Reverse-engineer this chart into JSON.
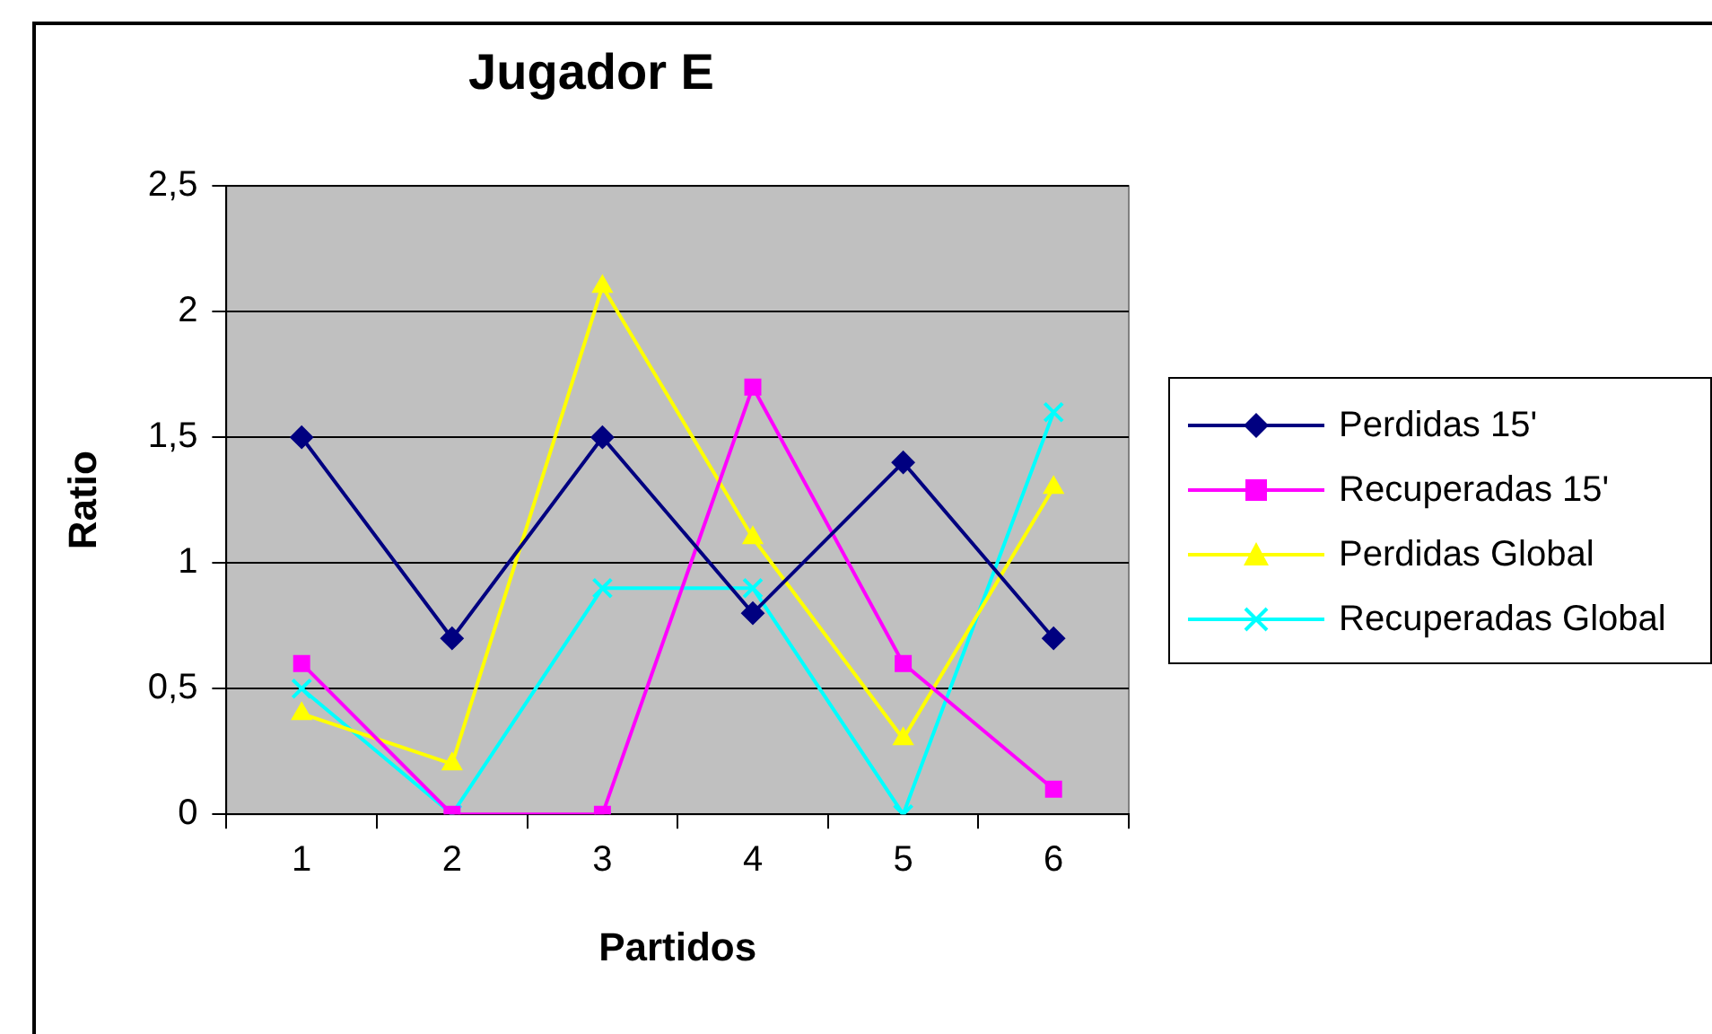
{
  "chart_data": {
    "type": "line",
    "title": "Jugador E",
    "xlabel": "Partidos",
    "ylabel": "Ratio",
    "categories": [
      "1",
      "2",
      "3",
      "4",
      "5",
      "6"
    ],
    "series": [
      {
        "name": "Perdidas 15'",
        "color": "#000080",
        "marker": "diamond",
        "values": [
          1.5,
          0.7,
          1.5,
          0.8,
          1.4,
          0.7
        ]
      },
      {
        "name": "Recuperadas 15'",
        "color": "#ff00ff",
        "marker": "square",
        "values": [
          0.6,
          0,
          0,
          1.7,
          0.6,
          0.1
        ]
      },
      {
        "name": "Perdidas Global",
        "color": "#ffff00",
        "marker": "triangle",
        "values": [
          0.4,
          0.2,
          2.1,
          1.1,
          0.3,
          1.3
        ]
      },
      {
        "name": "Recuperadas Global",
        "color": "#00ffff",
        "marker": "cross",
        "values": [
          0.5,
          0,
          0.9,
          0.9,
          0,
          1.6
        ]
      }
    ],
    "ylim": [
      0,
      2.5
    ],
    "yticks": [
      {
        "value": 0,
        "label": "0"
      },
      {
        "value": 0.5,
        "label": "0,5"
      },
      {
        "value": 1,
        "label": "1"
      },
      {
        "value": 1.5,
        "label": "1,5"
      },
      {
        "value": 2,
        "label": "2"
      },
      {
        "value": 2.5,
        "label": "2,5"
      }
    ],
    "grid": "y",
    "legend": "right",
    "line_style": "solid"
  }
}
